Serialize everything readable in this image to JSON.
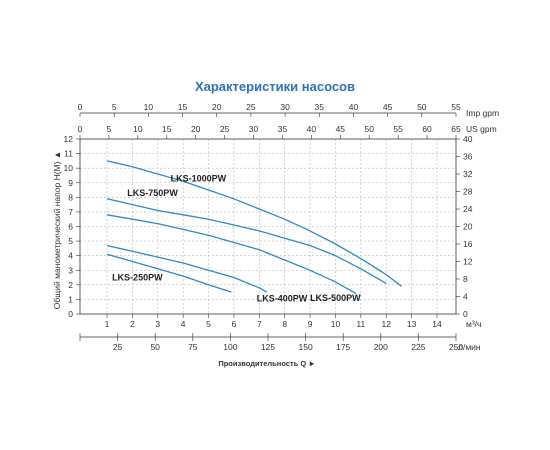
{
  "chart_data": {
    "type": "line",
    "title": "Характеристики насосов",
    "ylabel": "Общий манометрический напор H(M) ▲",
    "ylim": [
      0,
      12
    ],
    "y_ticks": [
      0,
      1,
      2,
      3,
      4,
      5,
      6,
      7,
      8,
      9,
      10,
      11,
      12
    ],
    "y2_ticks": [
      0,
      4,
      8,
      12,
      16,
      20,
      24,
      28,
      32,
      36,
      40
    ],
    "xlabel": "Производительность Q ►",
    "x_m3h_ticks": [
      1,
      2,
      3,
      4,
      5,
      6,
      7,
      8,
      9,
      10,
      11,
      12,
      13,
      14
    ],
    "x_m3h_unit": "м³/ч",
    "x_lmin_ticks": [
      0,
      25,
      50,
      75,
      100,
      125,
      150,
      175,
      200,
      225,
      250
    ],
    "x_lmin_unit": "л/мин",
    "top1_ticks": [
      0,
      5,
      10,
      15,
      20,
      25,
      30,
      35,
      40,
      45,
      50,
      55
    ],
    "top1_unit": "Imp gpm",
    "top2_ticks": [
      0,
      5,
      10,
      15,
      20,
      25,
      30,
      35,
      40,
      45,
      50,
      55,
      60,
      65
    ],
    "top2_unit": "US gpm",
    "series": [
      {
        "name": "LKS-1000PW",
        "x": [
          1,
          2,
          3,
          4,
          5,
          6,
          7,
          8,
          9,
          10,
          11,
          12,
          12.6
        ],
        "y": [
          10.5,
          10.1,
          9.6,
          9.1,
          8.5,
          7.9,
          7.2,
          6.5,
          5.7,
          4.8,
          3.8,
          2.7,
          1.9
        ]
      },
      {
        "name": "LKS-750PW",
        "x": [
          1,
          2,
          3,
          4,
          5,
          6,
          7,
          8,
          9,
          10,
          11,
          12
        ],
        "y": [
          7.9,
          7.5,
          7.1,
          6.8,
          6.5,
          6.1,
          5.7,
          5.2,
          4.7,
          4.0,
          3.1,
          2.1
        ]
      },
      {
        "name": "LKS-500PW",
        "x": [
          1,
          2,
          3,
          4,
          5,
          6,
          7,
          8,
          9,
          10,
          10.8
        ],
        "y": [
          6.8,
          6.5,
          6.2,
          5.8,
          5.4,
          4.9,
          4.4,
          3.7,
          3.0,
          2.2,
          1.4
        ]
      },
      {
        "name": "LKS-400PW",
        "x": [
          1,
          2,
          3,
          4,
          5,
          6,
          7,
          7.3
        ],
        "y": [
          4.7,
          4.3,
          3.9,
          3.5,
          3.0,
          2.5,
          1.8,
          1.5
        ]
      },
      {
        "name": "LKS-250PW",
        "x": [
          1,
          2,
          3,
          4,
          5,
          5.9
        ],
        "y": [
          4.1,
          3.6,
          3.1,
          2.6,
          2.0,
          1.5
        ]
      }
    ]
  }
}
